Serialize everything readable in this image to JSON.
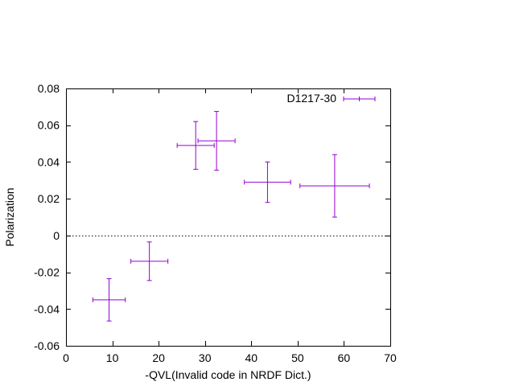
{
  "chart_data": {
    "type": "scatter",
    "title": "",
    "xlabel": "-QVL(Invalid code in NRDF Dict.)",
    "ylabel": "Polarization",
    "xlim": [
      0,
      70
    ],
    "ylim": [
      -0.06,
      0.08
    ],
    "xticks": [
      0,
      10,
      20,
      30,
      40,
      50,
      60,
      70
    ],
    "xtick_labels": [
      "0",
      "10",
      "20",
      "30",
      "40",
      "50",
      "60",
      "70"
    ],
    "yticks": [
      -0.06,
      -0.04,
      -0.02,
      0,
      0.02,
      0.04,
      0.06,
      0.08
    ],
    "ytick_labels": [
      "-0.06",
      "-0.04",
      "-0.02",
      "0",
      "0.02",
      "0.04",
      "0.06",
      "0.08"
    ],
    "grid": false,
    "zero_line": true,
    "legend_position": "top-right",
    "series": [
      {
        "name": "D1217-30",
        "color": "#9400d3",
        "style": "xyerrorbars",
        "points": [
          {
            "x": 9.3,
            "y": -0.035,
            "xerr": 3.5,
            "yerr": 0.0115
          },
          {
            "x": 18.0,
            "y": -0.014,
            "xerr": 4.0,
            "yerr": 0.0105
          },
          {
            "x": 28.0,
            "y": 0.049,
            "xerr": 4.0,
            "yerr": 0.013
          },
          {
            "x": 32.5,
            "y": 0.0515,
            "xerr": 4.0,
            "yerr": 0.016
          },
          {
            "x": 43.5,
            "y": 0.029,
            "xerr": 5.0,
            "yerr": 0.011
          },
          {
            "x": 58.0,
            "y": 0.027,
            "xerr": 7.5,
            "yerr": 0.017
          }
        ]
      }
    ]
  }
}
